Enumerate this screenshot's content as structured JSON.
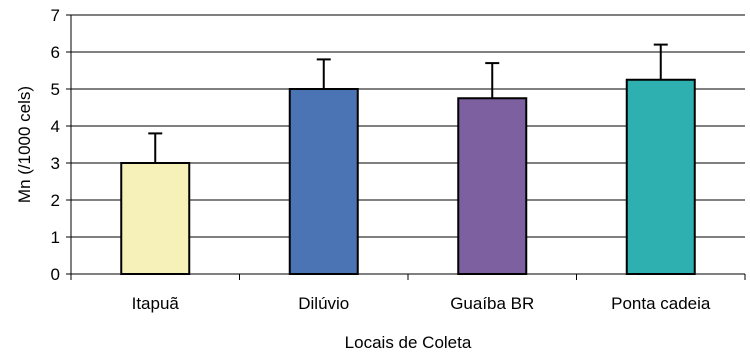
{
  "chart_data": {
    "type": "bar",
    "title": "",
    "xlabel": "Locais de Coleta",
    "ylabel": "Mn (/1000 cels)",
    "ylim": [
      0,
      7
    ],
    "yticks": [
      0,
      1,
      2,
      3,
      4,
      5,
      6,
      7
    ],
    "grid": true,
    "legend": "none",
    "categories": [
      "Itapuã",
      "Dilúvio",
      "Guaíba BR",
      "Ponta cadeia"
    ],
    "values": [
      3.0,
      5.0,
      4.75,
      5.25
    ],
    "error_plus": [
      0.8,
      0.8,
      0.95,
      0.95
    ],
    "colors": [
      "#F5F1B8",
      "#4A74B4",
      "#7D60A0",
      "#2FB0B0"
    ]
  }
}
